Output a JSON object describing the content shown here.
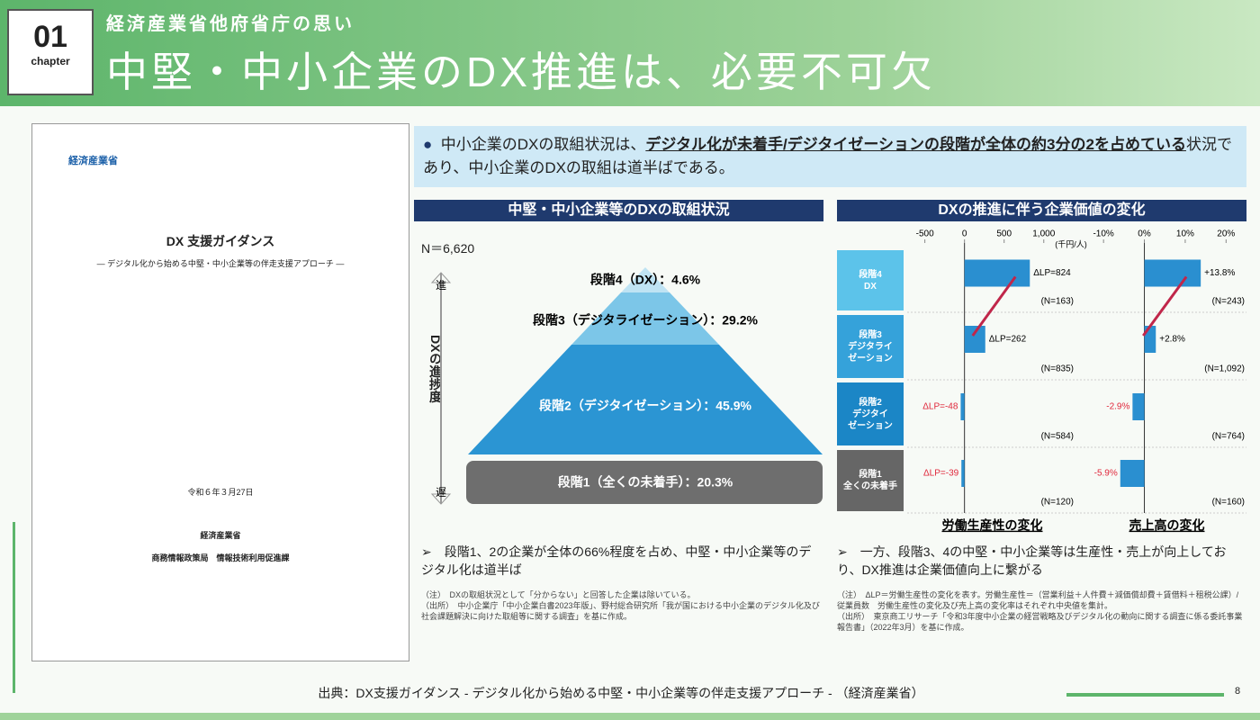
{
  "header": {
    "chapter_number": "01",
    "chapter_label": "chapter",
    "subtitle": "経済産業省他府省庁の思い",
    "title": "中堅・中小企業のDX推進は、必要不可欠"
  },
  "document": {
    "logo": "経済産業省",
    "title": "DX 支援ガイダンス",
    "subtitle": "― デジタル化から始める中堅・中小企業等の伴走支援アプローチ ―",
    "date": "令和６年３月27日",
    "org": "経済産業省",
    "dept": "商務情報政策局　情報技術利用促進課"
  },
  "summary": {
    "text_1": "中小企業のDXの取組状況は、",
    "text_em": "デジタル化が未着手/デジタイゼーションの段階が全体の約3分の2を占めている",
    "text_2": "状況であり、中小企業のDXの取組は道半ばである。"
  },
  "pyramid": {
    "heading": "中堅・中小企業等のDXの取組状況",
    "n": "N＝6,620",
    "axis_top": "進",
    "axis_label": "DXの進捗度",
    "axis_bottom": "遅",
    "stages": [
      "段階4（DX）：4.6%",
      "段階3（デジタライゼーション）：29.2%",
      "段階2（デジタイゼーション）：45.9%",
      "段階1（全くの未着手）：20.3%"
    ],
    "bullet": "段階1、2の企業が全体の66%程度を占め、中堅・中小企業等のデジタル化は道半ば",
    "notes": [
      "（注）　DXの取組状況として「分からない」と回答した企業は除いている。",
      "（出所）　中小企業庁「中小企業白書2023年版」、野村総合研究所「我が国における中小企業のデジタル化及び社会課題解決に向けた取組等に関する調査」を基に作成。"
    ]
  },
  "value_section": {
    "heading": "DXの推進に伴う企業価値の変化",
    "bullet": "一方、段階3、4の中堅・中小企業等は生産性・売上が向上しており、DX推進は企業価値向上に繋がる",
    "notes": [
      "（注）　ΔLP＝労働生産性の変化を表す。労働生産性＝（営業利益＋人件費＋減価償却費＋賃借料＋租税公課）/従業員数　労働生産性の変化及び売上高の変化率はそれぞれ中央値を集計。",
      "（出所）　東京商工リサーチ「令和3年度中小企業の経営戦略及びデジタル化の動向に関する調査に係る委託事業 報告書」（2022年3月）を基に作成。"
    ]
  },
  "chart_data": [
    {
      "type": "bar",
      "title": "労働生産性の変化",
      "unit": "(千円/人)",
      "categories": [
        "段階4\nDX",
        "段階3\nデジタライ\nゼーション",
        "段階2\nデジタイ\nゼーション",
        "段階1\n全くの未着手"
      ],
      "values": [
        824,
        262,
        -48,
        -39
      ],
      "value_labels": [
        "ΔLP=824",
        "ΔLP=262",
        "ΔLP=-48",
        "ΔLP=-39"
      ],
      "notes": [
        "(N=163)",
        "(N=835)",
        "(N=584)",
        "(N=120)"
      ],
      "color": "#2a8fd0",
      "xlim": [
        -700,
        1400
      ],
      "xticks": [
        -500,
        0,
        500,
        {
          "value": 1000,
          "label": "1,000"
        }
      ]
    },
    {
      "type": "bar",
      "title": "売上高の変化",
      "values": [
        13.8,
        2.8,
        -2.9,
        -5.9
      ],
      "value_labels": [
        "+13.8%",
        "+2.8%",
        "-2.9%",
        "-5.9%"
      ],
      "notes": [
        "(N=243)",
        "(N=1,092)",
        "(N=764)",
        "(N=160)"
      ],
      "color": "#2a8fd0",
      "xlim": [
        -14,
        25
      ],
      "xticks": [
        {
          "value": -10,
          "label": "-10%"
        },
        {
          "value": 0,
          "label": "0%"
        },
        {
          "value": 10,
          "label": "10%"
        },
        {
          "value": 20,
          "label": "20%"
        }
      ]
    }
  ],
  "source": "出典：DX支援ガイダンス ‐ デジタル化から始める中堅・中小企業等の伴走支援アプローチ ‐ （経済産業省）",
  "page": "8"
}
